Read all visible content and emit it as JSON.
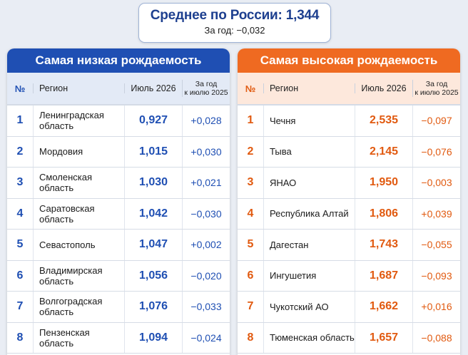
{
  "summary": {
    "average": "Среднее по России: 1,344",
    "year_change": "За год: −0,032"
  },
  "columns": {
    "num": "№",
    "region": "Регион",
    "value": "Июль 2026",
    "change_line1": "За год",
    "change_line2": "к июлю 2025"
  },
  "lowest": {
    "title": "Самая низкая рождаемость",
    "rows": [
      {
        "num": "1",
        "region_line1": "Ленинградская",
        "region_line2": "область",
        "value": "0,927",
        "change": "+0,028"
      },
      {
        "num": "2",
        "region_line1": "Мордовия",
        "region_line2": "",
        "value": "1,015",
        "change": "+0,030"
      },
      {
        "num": "3",
        "region_line1": "Смоленская",
        "region_line2": "область",
        "value": "1,030",
        "change": "+0,021"
      },
      {
        "num": "4",
        "region_line1": "Саратовская",
        "region_line2": "область",
        "value": "1,042",
        "change": "−0,030"
      },
      {
        "num": "5",
        "region_line1": "Севастополь",
        "region_line2": "",
        "value": "1,047",
        "change": "+0,002"
      },
      {
        "num": "6",
        "region_line1": "Владимирская",
        "region_line2": "область",
        "value": "1,056",
        "change": "−0,020"
      },
      {
        "num": "7",
        "region_line1": "Волгоградская",
        "region_line2": "область",
        "value": "1,076",
        "change": "−0,033"
      },
      {
        "num": "8",
        "region_line1": "Пензенская",
        "region_line2": "область",
        "value": "1,094",
        "change": "−0,024"
      }
    ]
  },
  "highest": {
    "title": "Самая высокая рождаемость",
    "rows": [
      {
        "num": "1",
        "region_line1": "Чечня",
        "region_line2": "",
        "value": "2,535",
        "change": "−0,097"
      },
      {
        "num": "2",
        "region_line1": "Тыва",
        "region_line2": "",
        "value": "2,145",
        "change": "−0,076"
      },
      {
        "num": "3",
        "region_line1": "ЯНАО",
        "region_line2": "",
        "value": "1,950",
        "change": "−0,003"
      },
      {
        "num": "4",
        "region_line1": "Республика Алтай",
        "region_line2": "",
        "value": "1,806",
        "change": "+0,039"
      },
      {
        "num": "5",
        "region_line1": "Дагестан",
        "region_line2": "",
        "value": "1,743",
        "change": "−0,055"
      },
      {
        "num": "6",
        "region_line1": "Ингушетия",
        "region_line2": "",
        "value": "1,687",
        "change": "−0,093"
      },
      {
        "num": "7",
        "region_line1": "Чукотский АО",
        "region_line2": "",
        "value": "1,662",
        "change": "+0,016"
      },
      {
        "num": "8",
        "region_line1": "Тюменская область",
        "region_line2": "",
        "value": "1,657",
        "change": "−0,088"
      }
    ]
  }
}
